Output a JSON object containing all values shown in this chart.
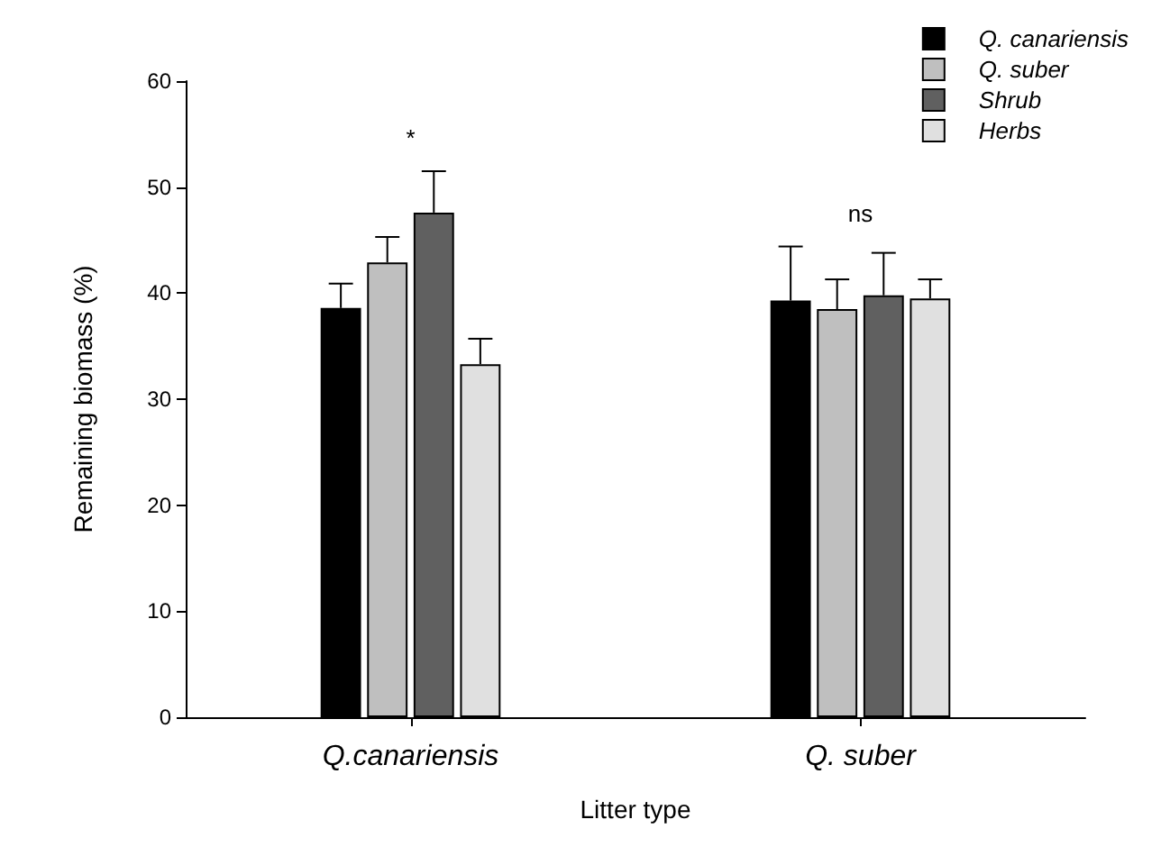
{
  "chart_data": {
    "type": "bar",
    "xlabel": "Litter type",
    "ylabel": "Remaining biomass (%)",
    "categories": [
      "Q.canariensis",
      "Q. suber"
    ],
    "series": [
      {
        "name": "Q. canariensis",
        "color": "#000000",
        "values": [
          38.6,
          39.3
        ],
        "errors": [
          [
            38.6,
            40.9
          ],
          [
            39.3,
            44.4
          ]
        ]
      },
      {
        "name": "Q. suber",
        "color": "#bfbfbf",
        "values": [
          42.9,
          38.5
        ],
        "errors": [
          [
            42.9,
            45.3
          ],
          [
            38.5,
            41.3
          ]
        ]
      },
      {
        "name": "Shrub",
        "color": "#606060",
        "values": [
          47.6,
          39.8
        ],
        "errors": [
          [
            47.6,
            51.5
          ],
          [
            39.8,
            43.8
          ]
        ]
      },
      {
        "name": "Herbs",
        "color": "#e0e0e0",
        "values": [
          33.3,
          39.5
        ],
        "errors": [
          [
            33.3,
            35.7
          ],
          [
            39.5,
            41.3
          ]
        ]
      }
    ],
    "ylim": [
      0,
      60
    ],
    "yticks": [
      0,
      10,
      20,
      30,
      40,
      50,
      60
    ],
    "grid": false,
    "legend": "top right",
    "annotations": [
      "*",
      "ns"
    ]
  }
}
